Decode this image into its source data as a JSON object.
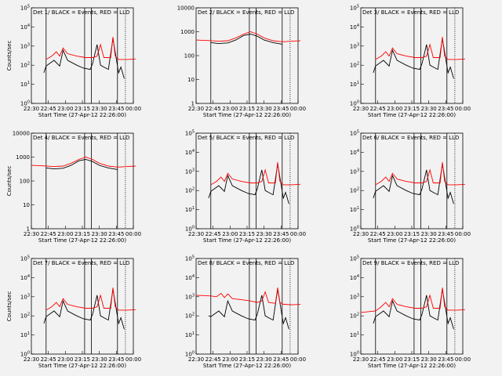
{
  "chart_data": [
    {
      "type": "line",
      "title": "Det 1/ BLACK = Events, RED = LLD",
      "xlabel": "Start Time (27-Apr-12 22:26:00)",
      "ylabel": "Counts/sec",
      "log_y": true,
      "yticks": [
        "10^0",
        "10^1",
        "10^2",
        "10^3",
        "10^4",
        "10^5"
      ],
      "xticks": [
        "22:30",
        "22:45",
        "23:00",
        "23:15",
        "23:30",
        "23:45",
        "00:00"
      ],
      "vlines_solid": [
        "22:43",
        "23:17",
        "23:23",
        "23:46"
      ],
      "vlines_dotted": [
        "23:53"
      ],
      "series": [
        {
          "name": "Events",
          "color": "#000000",
          "x": [
            "22:41",
            "22:43",
            "22:50",
            "22:55",
            "22:58",
            "23:02",
            "23:10",
            "23:16",
            "23:22",
            "23:24",
            "23:28",
            "23:31",
            "23:34",
            "23:38",
            "23:42",
            "23:47",
            "23:49",
            "23:52"
          ],
          "y": [
            40,
            90,
            180,
            90,
            600,
            180,
            100,
            70,
            60,
            120,
            1200,
            100,
            80,
            60,
            2500,
            40,
            80,
            20
          ]
        },
        {
          "name": "LLD",
          "color": "#ff0000",
          "x": [
            "22:43",
            "22:48",
            "22:52",
            "22:55",
            "22:58",
            "23:02",
            "23:10",
            "23:18",
            "23:24",
            "23:28",
            "23:31",
            "23:34",
            "23:40",
            "23:42",
            "23:44",
            "23:47",
            "23:55",
            "00:02"
          ],
          "y": [
            200,
            300,
            500,
            300,
            800,
            400,
            300,
            250,
            250,
            300,
            1200,
            250,
            250,
            3000,
            300,
            200,
            200,
            210
          ]
        }
      ]
    },
    {
      "type": "line",
      "title": "Det 2/ BLACK = Events, RED = LLD",
      "xlabel": "Start Time (27-Apr-12 22:26:00)",
      "ylabel": "",
      "log_y": true,
      "yticks": [
        "1",
        "10",
        "100",
        "1000",
        "10000"
      ],
      "xticks": [
        "22:30",
        "22:45",
        "23:00",
        "23:15",
        "23:30",
        "23:45",
        "00:00"
      ],
      "vlines_solid": [
        "22:43",
        "23:17",
        "23:23",
        "23:46"
      ],
      "vlines_dotted": [
        "23:53"
      ],
      "series": [
        {
          "name": "Events",
          "color": "#000000",
          "x": [
            "22:43",
            "22:50",
            "22:58",
            "23:05",
            "23:12",
            "23:18",
            "23:24",
            "23:30",
            "23:38",
            "23:46"
          ],
          "y": [
            350,
            320,
            340,
            450,
            700,
            800,
            650,
            450,
            350,
            300
          ]
        },
        {
          "name": "LLD",
          "color": "#ff0000",
          "x": [
            "22:30",
            "22:40",
            "22:50",
            "22:58",
            "23:05",
            "23:12",
            "23:18",
            "23:24",
            "23:30",
            "23:38",
            "23:46",
            "23:55",
            "00:02"
          ],
          "y": [
            450,
            430,
            400,
            420,
            550,
            800,
            1000,
            800,
            550,
            420,
            380,
            400,
            420
          ]
        }
      ]
    },
    {
      "type": "line",
      "title": "Det 3/ BLACK = Events, RED = LLD",
      "xlabel": "Start Time (27-Apr-12 22:26:00)",
      "ylabel": "",
      "log_y": true,
      "yticks": [
        "10^0",
        "10^1",
        "10^2",
        "10^3",
        "10^4",
        "10^5"
      ],
      "xticks": [
        "22:30",
        "22:45",
        "23:00",
        "23:15",
        "23:30",
        "23:45",
        "00:00"
      ],
      "vlines_solid": [
        "22:43",
        "23:17",
        "23:23",
        "23:46"
      ],
      "vlines_dotted": [
        "23:53"
      ],
      "series": [
        {
          "name": "Events",
          "color": "#000000",
          "x": [
            "22:41",
            "22:43",
            "22:50",
            "22:55",
            "22:58",
            "23:02",
            "23:10",
            "23:16",
            "23:22",
            "23:24",
            "23:28",
            "23:31",
            "23:34",
            "23:38",
            "23:42",
            "23:47",
            "23:49",
            "23:52"
          ],
          "y": [
            40,
            90,
            180,
            90,
            600,
            180,
            100,
            70,
            60,
            120,
            1200,
            100,
            80,
            60,
            2500,
            40,
            80,
            20
          ]
        },
        {
          "name": "LLD",
          "color": "#ff0000",
          "x": [
            "22:43",
            "22:48",
            "22:52",
            "22:55",
            "22:58",
            "23:02",
            "23:10",
            "23:18",
            "23:24",
            "23:28",
            "23:31",
            "23:34",
            "23:40",
            "23:42",
            "23:44",
            "23:47",
            "23:55",
            "00:02"
          ],
          "y": [
            200,
            300,
            500,
            300,
            800,
            400,
            300,
            250,
            250,
            300,
            1200,
            250,
            250,
            3000,
            300,
            200,
            200,
            210
          ]
        }
      ]
    },
    {
      "type": "line",
      "title": "Det 4/ BLACK = Events, RED = LLD",
      "xlabel": "Start Time (27-Apr-12 22:26:00)",
      "ylabel": "Counts/sec",
      "log_y": true,
      "yticks": [
        "1",
        "10",
        "100",
        "1000",
        "10000"
      ],
      "xticks": [
        "22:30",
        "22:45",
        "23:00",
        "23:15",
        "23:30",
        "23:45",
        "00:00"
      ],
      "vlines_solid": [
        "22:43",
        "23:17",
        "23:23",
        "23:46"
      ],
      "vlines_dotted": [
        "23:53"
      ],
      "series": [
        {
          "name": "Events",
          "color": "#000000",
          "x": [
            "22:43",
            "22:50",
            "22:58",
            "23:05",
            "23:12",
            "23:18",
            "23:24",
            "23:30",
            "23:38",
            "23:46"
          ],
          "y": [
            350,
            320,
            340,
            450,
            700,
            800,
            650,
            450,
            350,
            300
          ]
        },
        {
          "name": "LLD",
          "color": "#ff0000",
          "x": [
            "22:30",
            "22:40",
            "22:50",
            "22:58",
            "23:05",
            "23:12",
            "23:18",
            "23:24",
            "23:30",
            "23:38",
            "23:46",
            "23:55",
            "00:02"
          ],
          "y": [
            450,
            430,
            400,
            420,
            550,
            800,
            1000,
            800,
            550,
            420,
            380,
            400,
            420
          ]
        }
      ]
    },
    {
      "type": "line",
      "title": "Det 5/ BLACK = Events, RED = LLD",
      "xlabel": "Start Time (27-Apr-12 22:26:00)",
      "ylabel": "",
      "log_y": true,
      "yticks": [
        "10^0",
        "10^1",
        "10^2",
        "10^3",
        "10^4",
        "10^5"
      ],
      "xticks": [
        "22:30",
        "22:45",
        "23:00",
        "23:15",
        "23:30",
        "23:45",
        "00:00"
      ],
      "vlines_solid": [
        "22:43",
        "23:17",
        "23:23",
        "23:46"
      ],
      "vlines_dotted": [
        "23:53"
      ],
      "series": [
        {
          "name": "Events",
          "color": "#000000",
          "x": [
            "22:41",
            "22:43",
            "22:50",
            "22:55",
            "22:58",
            "23:02",
            "23:10",
            "23:16",
            "23:22",
            "23:24",
            "23:28",
            "23:31",
            "23:34",
            "23:38",
            "23:42",
            "23:47",
            "23:49",
            "23:52"
          ],
          "y": [
            40,
            90,
            180,
            90,
            600,
            180,
            100,
            70,
            60,
            120,
            1200,
            100,
            80,
            60,
            2500,
            40,
            80,
            20
          ]
        },
        {
          "name": "LLD",
          "color": "#ff0000",
          "x": [
            "22:43",
            "22:48",
            "22:52",
            "22:55",
            "22:58",
            "23:02",
            "23:10",
            "23:18",
            "23:24",
            "23:28",
            "23:31",
            "23:34",
            "23:40",
            "23:42",
            "23:44",
            "23:47",
            "23:55",
            "00:02"
          ],
          "y": [
            200,
            300,
            500,
            300,
            800,
            400,
            300,
            250,
            250,
            300,
            1200,
            250,
            250,
            3000,
            300,
            200,
            200,
            210
          ]
        }
      ]
    },
    {
      "type": "line",
      "title": "Det 6/ BLACK = Events, RED = LLD",
      "xlabel": "Start Time (27-Apr-12 22:26:00)",
      "ylabel": "",
      "log_y": true,
      "yticks": [
        "10^0",
        "10^1",
        "10^2",
        "10^3",
        "10^4",
        "10^5"
      ],
      "xticks": [
        "22:30",
        "22:45",
        "23:00",
        "23:15",
        "23:30",
        "23:45",
        "00:00"
      ],
      "vlines_solid": [
        "22:43",
        "23:17",
        "23:23",
        "23:46"
      ],
      "vlines_dotted": [
        "23:53"
      ],
      "series": [
        {
          "name": "Events",
          "color": "#000000",
          "x": [
            "22:41",
            "22:43",
            "22:50",
            "22:55",
            "22:58",
            "23:02",
            "23:10",
            "23:16",
            "23:22",
            "23:24",
            "23:28",
            "23:31",
            "23:34",
            "23:38",
            "23:42",
            "23:47",
            "23:49",
            "23:52"
          ],
          "y": [
            40,
            90,
            180,
            90,
            600,
            180,
            100,
            70,
            60,
            120,
            1200,
            100,
            80,
            60,
            2500,
            40,
            80,
            20
          ]
        },
        {
          "name": "LLD",
          "color": "#ff0000",
          "x": [
            "22:43",
            "22:48",
            "22:52",
            "22:55",
            "22:58",
            "23:02",
            "23:10",
            "23:18",
            "23:24",
            "23:28",
            "23:31",
            "23:34",
            "23:40",
            "23:42",
            "23:44",
            "23:47",
            "23:55",
            "00:02"
          ],
          "y": [
            200,
            300,
            500,
            300,
            800,
            400,
            300,
            250,
            250,
            300,
            1200,
            250,
            250,
            3000,
            300,
            200,
            200,
            210
          ]
        }
      ]
    },
    {
      "type": "line",
      "title": "Det 7/ BLACK = Events, RED = LLD",
      "xlabel": "Start Time (27-Apr-12 22:26:00)",
      "ylabel": "Counts/sec",
      "log_y": true,
      "yticks": [
        "10^0",
        "10^1",
        "10^2",
        "10^3",
        "10^4",
        "10^5"
      ],
      "xticks": [
        "22:30",
        "22:45",
        "23:00",
        "23:15",
        "23:30",
        "23:45",
        "00:00"
      ],
      "vlines_solid": [
        "22:43",
        "23:17",
        "23:23",
        "23:46"
      ],
      "vlines_dotted": [
        "23:53"
      ],
      "series": [
        {
          "name": "Events",
          "color": "#000000",
          "x": [
            "22:41",
            "22:43",
            "22:50",
            "22:55",
            "22:58",
            "23:02",
            "23:10",
            "23:16",
            "23:22",
            "23:24",
            "23:28",
            "23:31",
            "23:34",
            "23:38",
            "23:42",
            "23:47",
            "23:49",
            "23:52"
          ],
          "y": [
            40,
            90,
            180,
            90,
            600,
            180,
            100,
            70,
            60,
            120,
            1200,
            100,
            80,
            60,
            2500,
            40,
            80,
            20
          ]
        },
        {
          "name": "LLD",
          "color": "#ff0000",
          "x": [
            "22:43",
            "22:48",
            "22:52",
            "22:55",
            "22:58",
            "23:02",
            "23:10",
            "23:18",
            "23:24",
            "23:28",
            "23:31",
            "23:34",
            "23:40",
            "23:42",
            "23:44",
            "23:47",
            "23:55",
            "00:02"
          ],
          "y": [
            200,
            300,
            500,
            300,
            800,
            400,
            300,
            250,
            250,
            300,
            1200,
            250,
            250,
            3000,
            300,
            200,
            200,
            210
          ]
        }
      ]
    },
    {
      "type": "line",
      "title": "Det 8/ BLACK = Events, RED = LLD",
      "xlabel": "Start Time (27-Apr-12 22:26:00)",
      "ylabel": "",
      "log_y": true,
      "yticks": [
        "10^0",
        "10^1",
        "10^2",
        "10^3",
        "10^4",
        "10^5"
      ],
      "xticks": [
        "22:30",
        "22:45",
        "23:00",
        "23:15",
        "23:30",
        "23:45",
        "00:00"
      ],
      "vlines_solid": [
        "22:43",
        "23:17",
        "23:23",
        "23:46"
      ],
      "vlines_dotted": [
        "23:53"
      ],
      "series": [
        {
          "name": "Events",
          "color": "#000000",
          "x": [
            "22:41",
            "22:43",
            "22:50",
            "22:55",
            "22:58",
            "23:02",
            "23:10",
            "23:16",
            "23:22",
            "23:24",
            "23:28",
            "23:31",
            "23:34",
            "23:38",
            "23:42",
            "23:47",
            "23:49",
            "23:52"
          ],
          "y": [
            100,
            90,
            180,
            90,
            600,
            180,
            100,
            70,
            60,
            120,
            1200,
            100,
            80,
            60,
            2500,
            40,
            80,
            20
          ]
        },
        {
          "name": "LLD",
          "color": "#ff0000",
          "x": [
            "22:30",
            "22:43",
            "22:48",
            "22:52",
            "22:55",
            "22:58",
            "23:02",
            "23:10",
            "23:18",
            "23:24",
            "23:28",
            "23:31",
            "23:34",
            "23:40",
            "23:42",
            "23:44",
            "23:47",
            "23:55",
            "00:02"
          ],
          "y": [
            1200,
            1100,
            1000,
            1500,
            900,
            1400,
            800,
            700,
            600,
            500,
            600,
            1800,
            500,
            450,
            3000,
            500,
            400,
            380,
            400
          ]
        }
      ]
    },
    {
      "type": "line",
      "title": "Det 9/ BLACK = Events, RED = LLD",
      "xlabel": "Start Time (27-Apr-12 22:26:00)",
      "ylabel": "",
      "log_y": true,
      "yticks": [
        "10^0",
        "10^1",
        "10^2",
        "10^3",
        "10^4",
        "10^5"
      ],
      "xticks": [
        "22:30",
        "22:45",
        "23:00",
        "23:15",
        "23:30",
        "23:45",
        "00:00"
      ],
      "vlines_solid": [
        "22:43",
        "23:17",
        "23:23",
        "23:46"
      ],
      "vlines_dotted": [
        "23:53"
      ],
      "series": [
        {
          "name": "Events",
          "color": "#000000",
          "x": [
            "22:41",
            "22:43",
            "22:50",
            "22:55",
            "22:58",
            "23:02",
            "23:10",
            "23:16",
            "23:22",
            "23:24",
            "23:28",
            "23:31",
            "23:34",
            "23:38",
            "23:42",
            "23:47",
            "23:49",
            "23:52"
          ],
          "y": [
            40,
            90,
            180,
            90,
            600,
            180,
            100,
            70,
            60,
            120,
            1200,
            100,
            80,
            60,
            2500,
            40,
            80,
            20
          ]
        },
        {
          "name": "LLD",
          "color": "#ff0000",
          "x": [
            "22:30",
            "22:43",
            "22:48",
            "22:52",
            "22:55",
            "22:58",
            "23:02",
            "23:10",
            "23:18",
            "23:24",
            "23:28",
            "23:31",
            "23:34",
            "23:40",
            "23:42",
            "23:44",
            "23:47",
            "23:55",
            "00:02"
          ],
          "y": [
            150,
            180,
            300,
            500,
            300,
            800,
            400,
            300,
            250,
            250,
            300,
            1200,
            250,
            250,
            3000,
            300,
            200,
            200,
            210
          ]
        }
      ]
    }
  ]
}
